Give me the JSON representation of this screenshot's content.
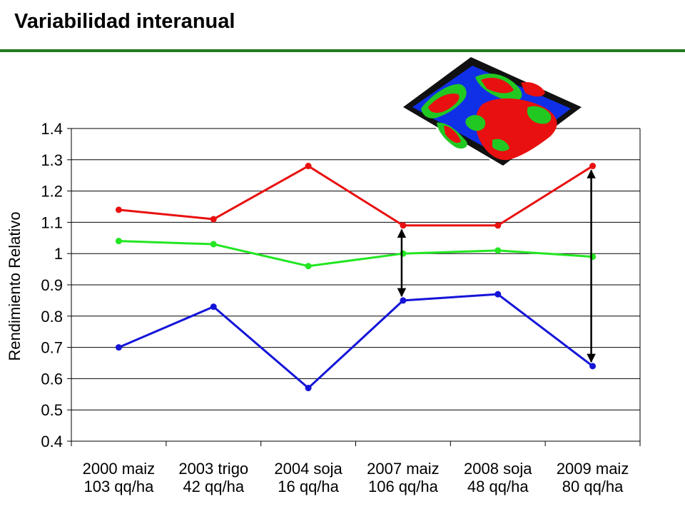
{
  "slide": {
    "title": "Variabilidad interanual"
  },
  "colors": {
    "title_rule": "#1e7a1e",
    "series_high": "#e81010",
    "series_mid": "#22e622",
    "series_low": "#1414d8",
    "map_background": "#111111",
    "map_blue": "#1030e8"
  },
  "inset_map": {
    "icon": "yield-map-thumbnail"
  },
  "chart_data": {
    "type": "line",
    "ylabel": "Rendimiento Relativo",
    "xlabel": "",
    "ylim": [
      0.4,
      1.4
    ],
    "yticks": [
      "1.4",
      "1.3",
      "1.2",
      "1.1",
      "1",
      "0.9",
      "0.8",
      "0.7",
      "0.6",
      "0.5",
      "0.4"
    ],
    "ytick_values": [
      1.4,
      1.3,
      1.2,
      1.1,
      1.0,
      0.9,
      0.8,
      0.7,
      0.6,
      0.5,
      0.4
    ],
    "grid": true,
    "legend": "none",
    "categories": [
      [
        "2000 maiz",
        "103 qq/ha"
      ],
      [
        "2003 trigo",
        "42 qq/ha"
      ],
      [
        "2004 soja",
        "16 qq/ha"
      ],
      [
        "2007 maiz",
        "106 qq/ha"
      ],
      [
        "2008 soja",
        "48 qq/ha"
      ],
      [
        "2009 maiz",
        "80 qq/ha"
      ]
    ],
    "series": [
      {
        "color": "#e81010",
        "values": [
          1.14,
          1.11,
          1.28,
          1.09,
          1.09,
          1.28
        ]
      },
      {
        "color": "#22e622",
        "values": [
          1.04,
          1.03,
          0.96,
          1.0,
          1.01,
          0.99
        ]
      },
      {
        "color": "#1414d8",
        "values": [
          0.7,
          0.83,
          0.57,
          0.85,
          0.87,
          0.64
        ]
      }
    ],
    "annotations": [
      {
        "type": "double-arrow",
        "category_index": 3,
        "from": 0.85,
        "to": 1.09
      },
      {
        "type": "double-arrow",
        "category_index": 5,
        "from": 0.64,
        "to": 1.28
      }
    ]
  }
}
